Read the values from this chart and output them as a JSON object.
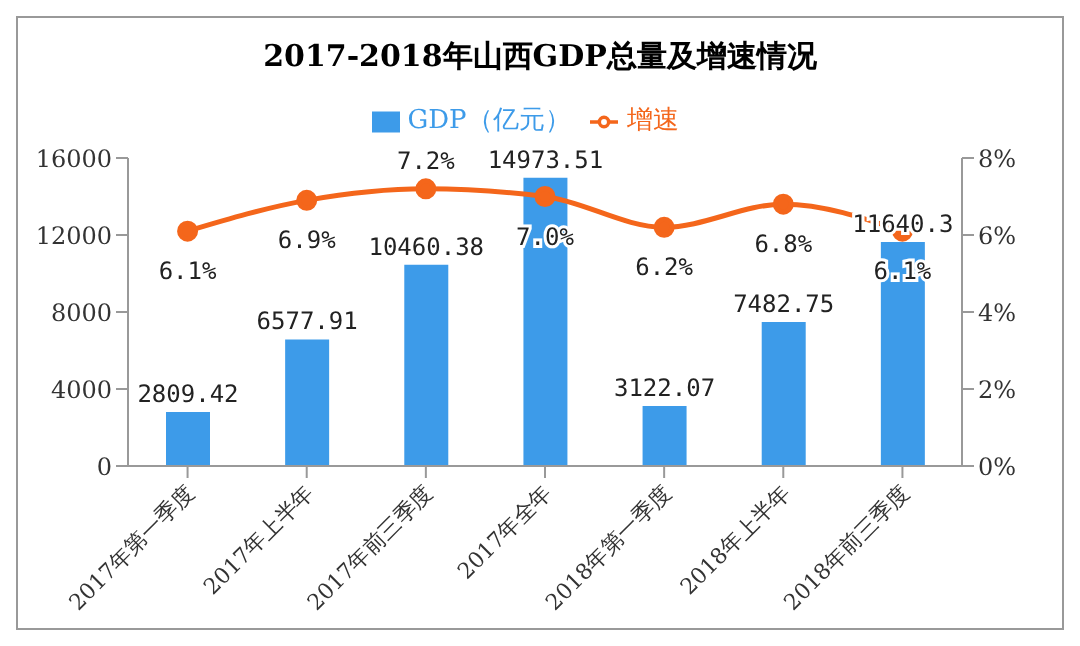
{
  "chart_data": {
    "type": "bar",
    "title": "2017-2018年山西GDP总量及增速情况",
    "categories": [
      "2017年第一季度",
      "2017年上半年",
      "2017年前三季度",
      "2017年全年",
      "2018年第一季度",
      "2018年上半年",
      "2018年前三季度"
    ],
    "series": [
      {
        "name": "GDP（亿元）",
        "color": "#3d9be9",
        "values": [
          2809.42,
          6577.91,
          10460.38,
          14973.51,
          3122.07,
          7482.75,
          11640.3
        ],
        "value_labels": [
          "2809.42",
          "6577.91",
          "10460.38",
          "14973.51",
          "3122.07",
          "7482.75",
          "11640.3"
        ]
      },
      {
        "name": "增速",
        "type": "line",
        "axis": "y2",
        "color": "#f4661b",
        "marker": "circle",
        "values": [
          6.1,
          6.9,
          7.2,
          7.0,
          6.2,
          6.8,
          6.1
        ],
        "value_labels": [
          "6.1%",
          "6.9%",
          "7.2%",
          "7.0%",
          "6.2%",
          "6.8%",
          "6.1%"
        ]
      }
    ],
    "ylim": [
      0,
      16000
    ],
    "yticks": [
      0,
      4000,
      8000,
      12000,
      16000
    ],
    "y2lim": [
      0,
      8
    ],
    "y2ticks": [
      {
        "value": 0,
        "label": "0%"
      },
      {
        "value": 2,
        "label": "2%"
      },
      {
        "value": 4,
        "label": "4%"
      },
      {
        "value": 6,
        "label": "6%"
      },
      {
        "value": 8,
        "label": "8%"
      }
    ],
    "grid": false,
    "legend": "top"
  }
}
